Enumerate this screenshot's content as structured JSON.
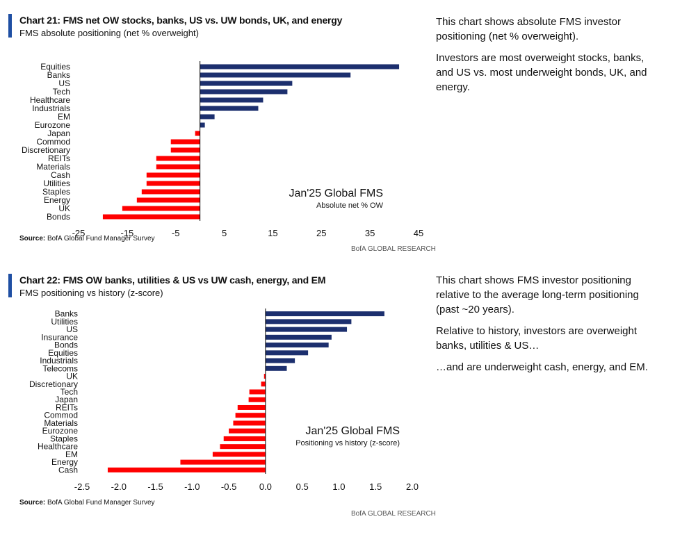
{
  "source_label": "Source:",
  "source_text": "BofA Global Fund Manager Survey",
  "brand": "BofA GLOBAL RESEARCH",
  "colors": {
    "positive": "#1c2f6e",
    "negative": "#ff0000",
    "accent": "#1f4fa3"
  },
  "chart_data": [
    {
      "type": "bar",
      "orientation": "horizontal",
      "title": "Chart 21: FMS net OW stocks, banks, US vs. UW bonds, UK, and energy",
      "subtitle": "FMS absolute positioning (net % overweight)",
      "annotation_title": "Jan'25 Global FMS",
      "annotation_subtitle": "Absolute net % OW",
      "categories": [
        "Equities",
        "Banks",
        "US",
        "Tech",
        "Healthcare",
        "Industrials",
        "EM",
        "Eurozone",
        "Japan",
        "Commod",
        "Discretionary",
        "REITs",
        "Materials",
        "Cash",
        "Utilities",
        "Staples",
        "Energy",
        "UK",
        "Bonds"
      ],
      "values": [
        41,
        31,
        19,
        18,
        13,
        12,
        3,
        1,
        -1,
        -6,
        -6,
        -9,
        -9,
        -11,
        -11,
        -12,
        -13,
        -16,
        -20
      ],
      "xlim": [
        -25,
        45
      ],
      "xticks": [
        "-25",
        "-15",
        "-5",
        "5",
        "15",
        "25",
        "35",
        "45"
      ],
      "tick_values": [
        -25,
        -15,
        -5,
        5,
        15,
        25,
        35,
        45
      ]
    },
    {
      "type": "bar",
      "orientation": "horizontal",
      "title": "Chart 22: FMS OW banks, utilities & US vs UW cash, energy, and EM",
      "subtitle": "FMS positioning vs history (z-score)",
      "annotation_title": "Jan'25 Global FMS",
      "annotation_subtitle": "Positioning vs history (z-score)",
      "categories": [
        "Banks",
        "Utilities",
        "US",
        "Insurance",
        "Bonds",
        "Equities",
        "Industrials",
        "Telecoms",
        "UK",
        "Discretionary",
        "Tech",
        "Japan",
        "REITs",
        "Commod",
        "Materials",
        "Eurozone",
        "Staples",
        "Healthcare",
        "EM",
        "Energy",
        "Cash"
      ],
      "values": [
        1.62,
        1.17,
        1.11,
        0.9,
        0.86,
        0.58,
        0.4,
        0.29,
        -0.02,
        -0.06,
        -0.22,
        -0.23,
        -0.38,
        -0.41,
        -0.44,
        -0.5,
        -0.57,
        -0.62,
        -0.72,
        -1.16,
        -2.15
      ],
      "xlim": [
        -2.5,
        2.0
      ],
      "xticks": [
        "-2.5",
        "-2.0",
        "-1.5",
        "-1.0",
        "-0.5",
        "0.0",
        "0.5",
        "1.0",
        "1.5",
        "2.0"
      ],
      "tick_values": [
        -2.5,
        -2.0,
        -1.5,
        -1.0,
        -0.5,
        0.0,
        0.5,
        1.0,
        1.5,
        2.0
      ]
    }
  ],
  "sidebar1": [
    "This chart shows absolute FMS investor positioning (net % overweight).",
    "Investors are most overweight stocks, banks, and US vs. most underweight bonds, UK, and energy."
  ],
  "sidebar2": [
    "This chart shows FMS investor positioning relative to the average long-term positioning (past ~20 years).",
    "Relative to history, investors are overweight banks, utilities & US…",
    "…and are underweight cash, energy, and EM."
  ]
}
